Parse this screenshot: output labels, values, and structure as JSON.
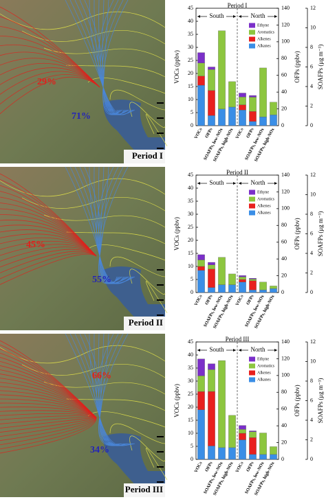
{
  "maps": [
    {
      "red_share": "29%",
      "blue_share": "71%",
      "label": "Period I"
    },
    {
      "red_share": "45%",
      "blue_share": "55%",
      "label": "Period II"
    },
    {
      "red_share": "66%",
      "blue_share": "34%",
      "label": "Period III"
    }
  ],
  "chart_data": [
    {
      "type": "bar",
      "stacked": true,
      "title": "Period I",
      "region_labels": [
        "South",
        "North"
      ],
      "categories": [
        "VOCs",
        "OFPs",
        "SOAFPs, low-NOx",
        "SOAFPs, high-NOx",
        "VOCs",
        "OFPs",
        "SOAFPs, low-NOx",
        "SOAFPs, high-NOx"
      ],
      "category_axes": [
        "y",
        "y2",
        "y3",
        "y3",
        "y",
        "y2",
        "y3",
        "y3"
      ],
      "ylabel": "VOCs (ppbv)",
      "y2label": "OFPs (ppbv)",
      "y3label": "SOAFPs (μg m⁻³)",
      "ylim": [
        0,
        45
      ],
      "yticks": [
        0,
        5,
        10,
        15,
        20,
        25,
        30,
        35,
        40,
        45
      ],
      "y2lim": [
        0,
        140
      ],
      "y2ticks": [
        0,
        20,
        40,
        60,
        80,
        100,
        120,
        140
      ],
      "y3lim": [
        0,
        12
      ],
      "y3ticks": [
        0,
        2,
        4,
        6,
        8,
        10,
        12
      ],
      "series": [
        {
          "name": "Alkanes",
          "color": "#3a8ee6",
          "values": [
            15.5,
            12,
            1.7,
            1.9,
            6,
            5,
            0.9,
            1.1
          ]
        },
        {
          "name": "Alkenes",
          "color": "#e8201e",
          "values": [
            3.5,
            30,
            0,
            0,
            2,
            12,
            0,
            0
          ]
        },
        {
          "name": "Aromatics",
          "color": "#8dc63f",
          "values": [
            5,
            25,
            8.0,
            2.6,
            3,
            17,
            5.0,
            1.3
          ]
        },
        {
          "name": "Ethyne",
          "color": "#7b2fc9",
          "values": [
            4,
            3,
            0,
            0,
            1.5,
            2,
            0,
            0
          ]
        }
      ]
    },
    {
      "type": "bar",
      "stacked": true,
      "title": "Period II",
      "region_labels": [
        "South",
        "North"
      ],
      "categories": [
        "VOCs",
        "OFPs",
        "SOAFPs, low-NOx",
        "SOAFPs, high-NOx",
        "VOCs",
        "OFPs",
        "SOAFPs, low-NOx",
        "SOAFPs, high-NOx"
      ],
      "category_axes": [
        "y",
        "y2",
        "y3",
        "y3",
        "y",
        "y2",
        "y3",
        "y3"
      ],
      "ylabel": "VOCs (ppbv)",
      "y2label": "OFPs (ppbv)",
      "y3label": "SOAFPs (μg m⁻³)",
      "ylim": [
        0,
        45
      ],
      "yticks": [
        0,
        5,
        10,
        15,
        20,
        25,
        30,
        35,
        40,
        45
      ],
      "y2lim": [
        0,
        140
      ],
      "y2ticks": [
        0,
        20,
        40,
        60,
        80,
        100,
        120,
        140
      ],
      "y3lim": [
        0,
        12
      ],
      "y3ticks": [
        0,
        2,
        4,
        6,
        8,
        10,
        12
      ],
      "series": [
        {
          "name": "Alkanes",
          "color": "#3a8ee6",
          "values": [
            8.5,
            6,
            0.8,
            0.8,
            4,
            3,
            0.27,
            0.4
          ]
        },
        {
          "name": "Alkenes",
          "color": "#e8201e",
          "values": [
            1.5,
            22,
            0,
            0,
            1,
            11,
            0,
            0
          ]
        },
        {
          "name": "Aromatics",
          "color": "#8dc63f",
          "values": [
            2.5,
            5,
            2.8,
            1.1,
            1,
            2,
            0.8,
            0.27
          ]
        },
        {
          "name": "Ethyne",
          "color": "#7b2fc9",
          "values": [
            2,
            3,
            0,
            0,
            0.5,
            1,
            0,
            0
          ]
        }
      ]
    },
    {
      "type": "bar",
      "stacked": true,
      "title": "Period III",
      "region_labels": [
        "South",
        "North"
      ],
      "categories": [
        "VOCs",
        "OFPs",
        "SOAFPs, low-NOx",
        "SOAFPs, high-NOx",
        "VOCs",
        "OFPs",
        "SOAFPs, low-NOx",
        "SOAFPs, high-NOx"
      ],
      "category_axes": [
        "y",
        "y2",
        "y3",
        "y3",
        "y",
        "y2",
        "y3",
        "y3"
      ],
      "ylabel": "VOCs (ppbv)",
      "y2label": "OFPs (ppbv)",
      "y3label": "SOAFPs (μg m⁻³)",
      "ylim": [
        0,
        45
      ],
      "yticks": [
        0,
        5,
        10,
        15,
        20,
        25,
        30,
        35,
        40,
        45
      ],
      "y2lim": [
        0,
        140
      ],
      "y2ticks": [
        0,
        20,
        40,
        60,
        80,
        100,
        120,
        140
      ],
      "y3lim": [
        0,
        12
      ],
      "y3ticks": [
        0,
        2,
        4,
        6,
        8,
        10,
        12
      ],
      "series": [
        {
          "name": "Alkanes",
          "color": "#3a8ee6",
          "values": [
            19,
            16,
            1.2,
            1.2,
            7.5,
            6,
            0.5,
            0.5
          ]
        },
        {
          "name": "Alkenes",
          "color": "#e8201e",
          "values": [
            7,
            65,
            0,
            0,
            2.5,
            20,
            0,
            0
          ]
        },
        {
          "name": "Aromatics",
          "color": "#8dc63f",
          "values": [
            6,
            26,
            8.9,
            3.3,
            1.5,
            7,
            2.2,
            0.8
          ]
        },
        {
          "name": "Ethyne",
          "color": "#7b2fc9",
          "values": [
            6.5,
            7,
            0,
            0,
            1.5,
            1,
            0,
            0
          ]
        }
      ]
    }
  ]
}
